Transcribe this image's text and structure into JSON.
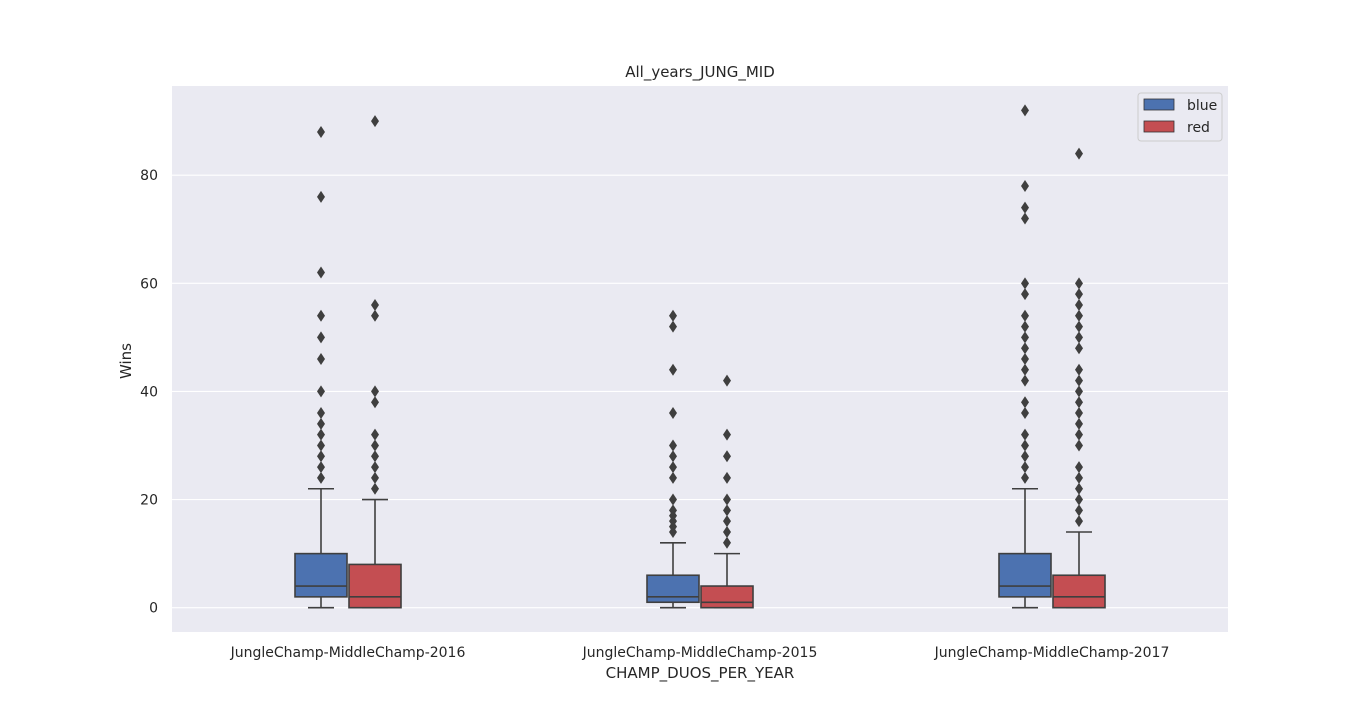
{
  "chart_data": {
    "type": "box",
    "title": "All_years_JUNG_MID",
    "xlabel": "CHAMP_DUOS_PER_YEAR",
    "ylabel": "Wins",
    "ylim": [
      -4.5,
      96.5
    ],
    "yticks": [
      0,
      20,
      40,
      60,
      80
    ],
    "grid": true,
    "legend_position": "top-right",
    "categories": [
      "JungleChamp-MiddleChamp-2016",
      "JungleChamp-MiddleChamp-2015",
      "JungleChamp-MiddleChamp-2017"
    ],
    "series": [
      {
        "name": "blue",
        "color": "#4c72b0",
        "boxes": [
          {
            "whisker_low": 0,
            "q1": 2,
            "median": 4,
            "q3": 10,
            "whisker_high": 22,
            "outliers": [
              24,
              26,
              28,
              30,
              32,
              34,
              36,
              40,
              46,
              50,
              54,
              62,
              76,
              88
            ]
          },
          {
            "whisker_low": 0,
            "q1": 1,
            "median": 2,
            "q3": 6,
            "whisker_high": 12,
            "outliers": [
              14,
              15,
              16,
              17,
              18,
              20,
              24,
              26,
              28,
              30,
              36,
              44,
              52,
              54
            ]
          },
          {
            "whisker_low": 0,
            "q1": 2,
            "median": 4,
            "q3": 10,
            "whisker_high": 22,
            "outliers": [
              24,
              26,
              28,
              30,
              32,
              36,
              38,
              42,
              44,
              46,
              48,
              50,
              52,
              54,
              58,
              60,
              72,
              74,
              78,
              92
            ]
          }
        ]
      },
      {
        "name": "red",
        "color": "#c44e52",
        "boxes": [
          {
            "whisker_low": 0,
            "q1": 0,
            "median": 2,
            "q3": 8,
            "whisker_high": 20,
            "outliers": [
              22,
              24,
              26,
              28,
              30,
              32,
              38,
              40,
              54,
              56,
              90
            ]
          },
          {
            "whisker_low": 0,
            "q1": 0,
            "median": 1,
            "q3": 4,
            "whisker_high": 10,
            "outliers": [
              12,
              14,
              16,
              18,
              20,
              24,
              28,
              32,
              42
            ]
          },
          {
            "whisker_low": 0,
            "q1": 0,
            "median": 2,
            "q3": 6,
            "whisker_high": 14,
            "outliers": [
              16,
              18,
              20,
              22,
              24,
              26,
              30,
              32,
              34,
              36,
              38,
              40,
              42,
              44,
              48,
              50,
              52,
              54,
              56,
              58,
              60,
              84
            ]
          }
        ]
      }
    ]
  }
}
